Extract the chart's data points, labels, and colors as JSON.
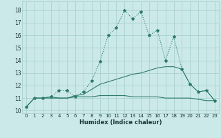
{
  "xlabel": "Humidex (Indice chaleur)",
  "background_color": "#cce9e9",
  "grid_color": "#aad0d0",
  "line_color": "#2d7a6a",
  "xlim": [
    -0.5,
    23.5
  ],
  "ylim": [
    9.8,
    18.7
  ],
  "yticks": [
    10,
    11,
    12,
    13,
    14,
    15,
    16,
    17,
    18
  ],
  "xticks": [
    0,
    1,
    2,
    3,
    4,
    5,
    6,
    7,
    8,
    9,
    10,
    11,
    12,
    13,
    14,
    15,
    16,
    17,
    18,
    19,
    20,
    21,
    22,
    23
  ],
  "line1_x": [
    0,
    1,
    2,
    3,
    4,
    5,
    6,
    7,
    8,
    9,
    10,
    11,
    12,
    13,
    14,
    15,
    16,
    17,
    18,
    19,
    20,
    21,
    22,
    23
  ],
  "line1_y": [
    10.3,
    11.0,
    11.0,
    11.1,
    11.6,
    11.6,
    11.1,
    11.5,
    12.4,
    13.9,
    16.0,
    16.6,
    18.0,
    17.3,
    17.9,
    16.0,
    16.4,
    14.0,
    15.9,
    13.3,
    12.1,
    11.5,
    11.6,
    10.8
  ],
  "line2_x": [
    0,
    1,
    2,
    3,
    4,
    5,
    6,
    7,
    8,
    9,
    10,
    11,
    12,
    13,
    14,
    15,
    16,
    17,
    18,
    19,
    20,
    21,
    22,
    23
  ],
  "line2_y": [
    10.3,
    11.0,
    11.0,
    11.1,
    11.0,
    11.0,
    11.2,
    11.3,
    11.7,
    12.1,
    12.3,
    12.5,
    12.7,
    12.9,
    13.0,
    13.2,
    13.4,
    13.5,
    13.5,
    13.3,
    12.1,
    11.5,
    11.6,
    10.8
  ],
  "line3_x": [
    0,
    1,
    2,
    3,
    4,
    5,
    6,
    7,
    8,
    9,
    10,
    11,
    12,
    13,
    14,
    15,
    16,
    17,
    18,
    19,
    20,
    21,
    22,
    23
  ],
  "line3_y": [
    10.3,
    11.0,
    11.0,
    11.0,
    11.0,
    11.0,
    11.1,
    11.1,
    11.1,
    11.2,
    11.2,
    11.2,
    11.2,
    11.1,
    11.1,
    11.1,
    11.1,
    11.0,
    11.0,
    11.0,
    11.0,
    10.9,
    10.8,
    10.8
  ]
}
